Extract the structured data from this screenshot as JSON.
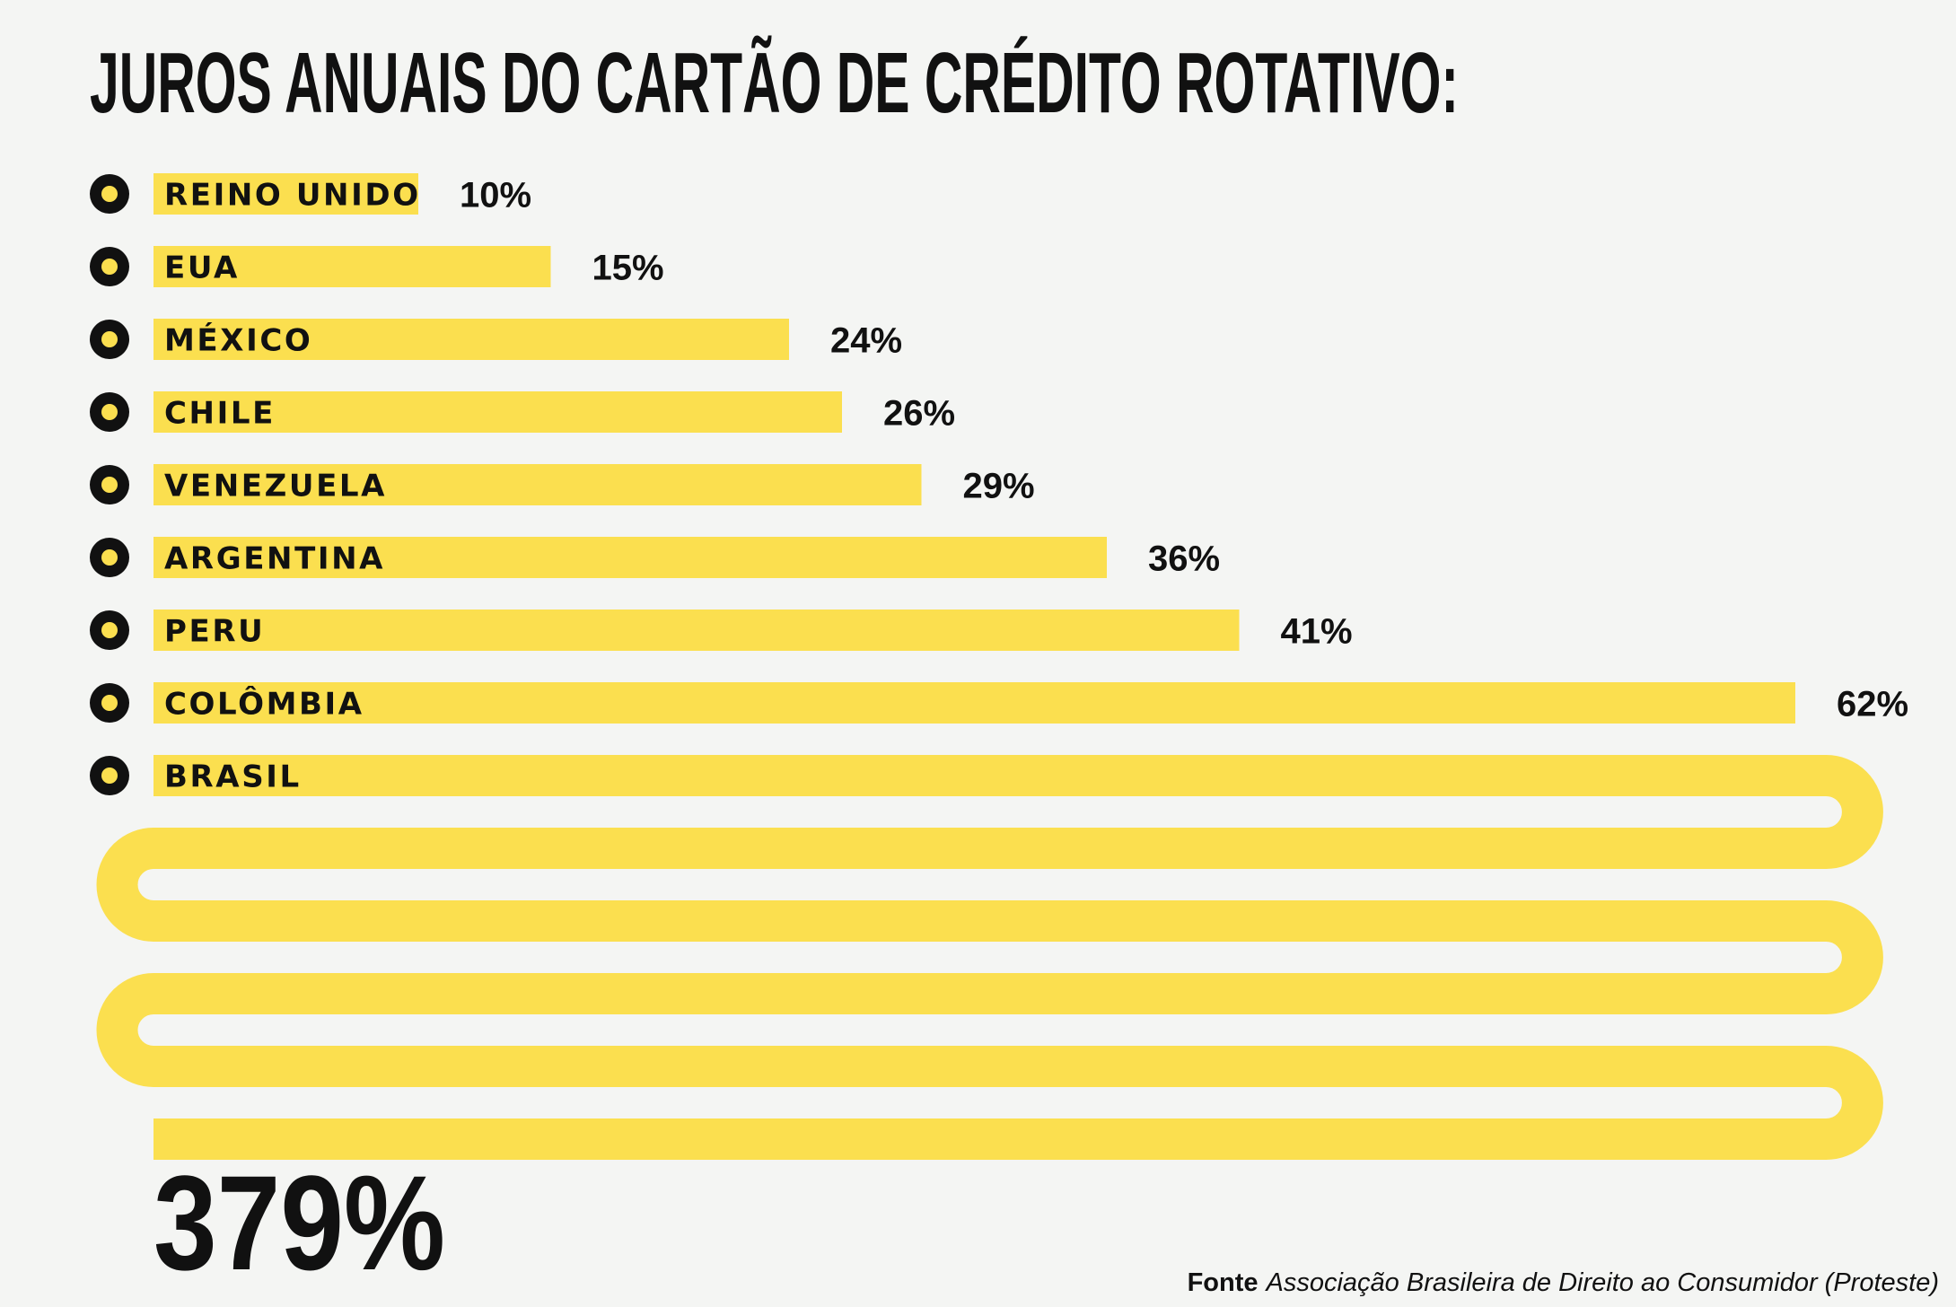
{
  "colors": {
    "background": "#f4f5f3",
    "bar": "#fbdf4f",
    "text": "#111111",
    "bullet": "#111111",
    "bullet_center": "#fbdf4f"
  },
  "chart_data": {
    "type": "bar",
    "orientation": "horizontal",
    "title": "JUROS ANUAIS DO CARTÃO DE CRÉDITO ROTATIVO:",
    "categories": [
      "REINO UNIDO",
      "EUA",
      "MÉXICO",
      "CHILE",
      "VENEZUELA",
      "ARGENTINA",
      "PERU",
      "COLÔMBIA",
      "BRASIL"
    ],
    "values": [
      10,
      15,
      24,
      26,
      29,
      36,
      41,
      62,
      379
    ],
    "value_labels": [
      "10%",
      "15%",
      "24%",
      "26%",
      "29%",
      "36%",
      "41%",
      "62%",
      "379%"
    ],
    "grid": false,
    "legend": "none"
  },
  "source": {
    "label": "Fonte",
    "text": "Associação Brasileira de Direito ao Consumidor (Proteste)"
  }
}
